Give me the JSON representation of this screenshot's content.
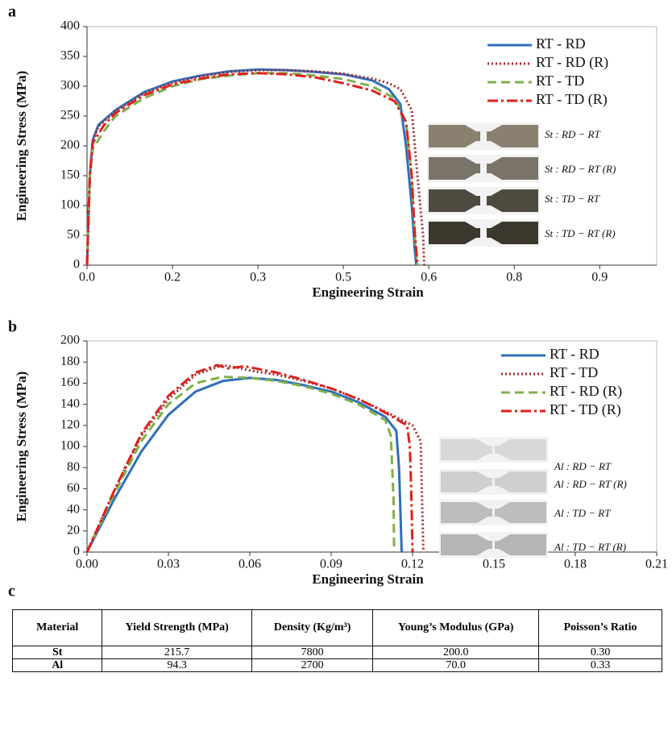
{
  "panels": [
    "a",
    "b",
    "c"
  ],
  "chart_data": [
    {
      "type": "line",
      "xlabel": "Engineering Strain",
      "ylabel": "Engineering Stress (MPa)",
      "xlim": [
        0,
        1.0
      ],
      "ylim": [
        0,
        400
      ],
      "xticks": [
        {
          "value": 0,
          "label": "0.0"
        },
        {
          "value": 0.15,
          "label": "0.2"
        },
        0.3,
        {
          "value": 0.45,
          "label": "0.5"
        },
        0.6,
        {
          "value": 0.75,
          "label": "0.8"
        },
        0.9
      ],
      "yticks": [
        0,
        50,
        100,
        150,
        200,
        250,
        300,
        350,
        400
      ],
      "grid": false,
      "legend": "upper right",
      "photo_labels": [
        "St : RD − RT",
        "St : RD − RT (R)",
        "St : TD − RT",
        "St : TD − RT (R)"
      ],
      "series": [
        {
          "name": "RT - RD",
          "color": "#2e6fba",
          "style": "solid",
          "x": [
            0,
            0.005,
            0.01,
            0.02,
            0.05,
            0.1,
            0.15,
            0.2,
            0.25,
            0.3,
            0.35,
            0.4,
            0.45,
            0.5,
            0.53,
            0.55,
            0.56,
            0.57,
            0.575,
            0.578
          ],
          "values": [
            0,
            150,
            210,
            235,
            260,
            290,
            308,
            318,
            325,
            328,
            327,
            324,
            320,
            310,
            295,
            270,
            200,
            100,
            30,
            0
          ]
        },
        {
          "name": "RT - RD (R)",
          "color": "#a52a2a",
          "style": "dotted",
          "x": [
            0,
            0.005,
            0.01,
            0.02,
            0.05,
            0.1,
            0.15,
            0.2,
            0.25,
            0.3,
            0.35,
            0.4,
            0.45,
            0.5,
            0.53,
            0.55,
            0.57,
            0.58,
            0.59,
            0.592
          ],
          "values": [
            0,
            150,
            208,
            233,
            258,
            288,
            306,
            317,
            324,
            327,
            327,
            325,
            321,
            313,
            305,
            295,
            260,
            150,
            50,
            0
          ]
        },
        {
          "name": "RT - TD",
          "color": "#7fb04a",
          "style": "dashed",
          "x": [
            0,
            0.005,
            0.01,
            0.03,
            0.05,
            0.1,
            0.15,
            0.2,
            0.25,
            0.3,
            0.35,
            0.4,
            0.45,
            0.5,
            0.54,
            0.56,
            0.57,
            0.575,
            0.58
          ],
          "values": [
            0,
            150,
            195,
            225,
            250,
            280,
            300,
            312,
            318,
            322,
            322,
            318,
            312,
            300,
            280,
            240,
            150,
            50,
            0
          ]
        },
        {
          "name": "RT - TD (R)",
          "color": "#e0201b",
          "style": "dashdot",
          "x": [
            0,
            0.005,
            0.01,
            0.03,
            0.05,
            0.1,
            0.15,
            0.2,
            0.25,
            0.3,
            0.35,
            0.4,
            0.45,
            0.5,
            0.54,
            0.56,
            0.57,
            0.575,
            0.58
          ],
          "values": [
            0,
            150,
            205,
            235,
            255,
            285,
            303,
            313,
            320,
            322,
            320,
            315,
            305,
            293,
            275,
            240,
            150,
            60,
            0
          ]
        }
      ]
    },
    {
      "type": "line",
      "xlabel": "Engineering Strain",
      "ylabel": "Engineering Stress (MPa)",
      "xlim": [
        0,
        0.21
      ],
      "ylim": [
        0,
        200
      ],
      "xticks": [
        {
          "value": 0,
          "label": "0.00"
        },
        0.03,
        0.06,
        0.09,
        0.12,
        0.15,
        0.18,
        0.21
      ],
      "yticks": [
        0,
        20,
        40,
        60,
        80,
        100,
        120,
        140,
        160,
        180,
        200
      ],
      "grid": false,
      "legend": "upper right",
      "photo_labels": [
        "Al : RD − RT",
        "Al : RD − RT (R)",
        "Al : TD − RT",
        "Al : TD − RT (R)"
      ],
      "series": [
        {
          "name": "RT - RD",
          "color": "#2e6fba",
          "style": "solid",
          "x": [
            0,
            0.01,
            0.02,
            0.03,
            0.04,
            0.05,
            0.06,
            0.07,
            0.08,
            0.09,
            0.1,
            0.11,
            0.114,
            0.115,
            0.1155,
            0.116
          ],
          "values": [
            0,
            50,
            95,
            130,
            152,
            162,
            165,
            163,
            158,
            152,
            142,
            128,
            115,
            80,
            40,
            0
          ]
        },
        {
          "name": "RT - TD",
          "color": "#a52a2a",
          "style": "dotted",
          "x": [
            0,
            0.01,
            0.02,
            0.03,
            0.04,
            0.05,
            0.055,
            0.06,
            0.07,
            0.08,
            0.09,
            0.1,
            0.11,
            0.12,
            0.123,
            0.1235,
            0.124
          ],
          "values": [
            0,
            58,
            110,
            145,
            168,
            177,
            175,
            172,
            168,
            162,
            155,
            145,
            133,
            120,
            105,
            50,
            0
          ]
        },
        {
          "name": "RT - RD (R)",
          "color": "#7fb04a",
          "style": "dashed",
          "x": [
            0,
            0.01,
            0.02,
            0.03,
            0.04,
            0.05,
            0.06,
            0.07,
            0.08,
            0.09,
            0.1,
            0.11,
            0.112,
            0.113,
            0.1132
          ],
          "values": [
            0,
            55,
            105,
            140,
            160,
            166,
            165,
            162,
            157,
            150,
            140,
            125,
            110,
            50,
            0
          ]
        },
        {
          "name": "RT - TD (R)",
          "color": "#e0201b",
          "style": "dashdot",
          "x": [
            0,
            0.01,
            0.02,
            0.03,
            0.04,
            0.048,
            0.052,
            0.058,
            0.07,
            0.08,
            0.09,
            0.1,
            0.11,
            0.118,
            0.119,
            0.1195,
            0.12
          ],
          "values": [
            0,
            58,
            112,
            148,
            170,
            177,
            174,
            176,
            170,
            163,
            155,
            145,
            132,
            120,
            100,
            60,
            0
          ]
        }
      ]
    }
  ],
  "table": {
    "header": [
      "Material",
      "Yield Strength (MPa)",
      "Density (Kg/m³)",
      "Young’s Modulus (GPa)",
      "Poisson’s Ratio"
    ],
    "rows": [
      [
        "St",
        "215.7",
        "7800",
        "200.0",
        "0.30"
      ],
      [
        "Al",
        "94.3",
        "2700",
        "70.0",
        "0.33"
      ]
    ]
  }
}
